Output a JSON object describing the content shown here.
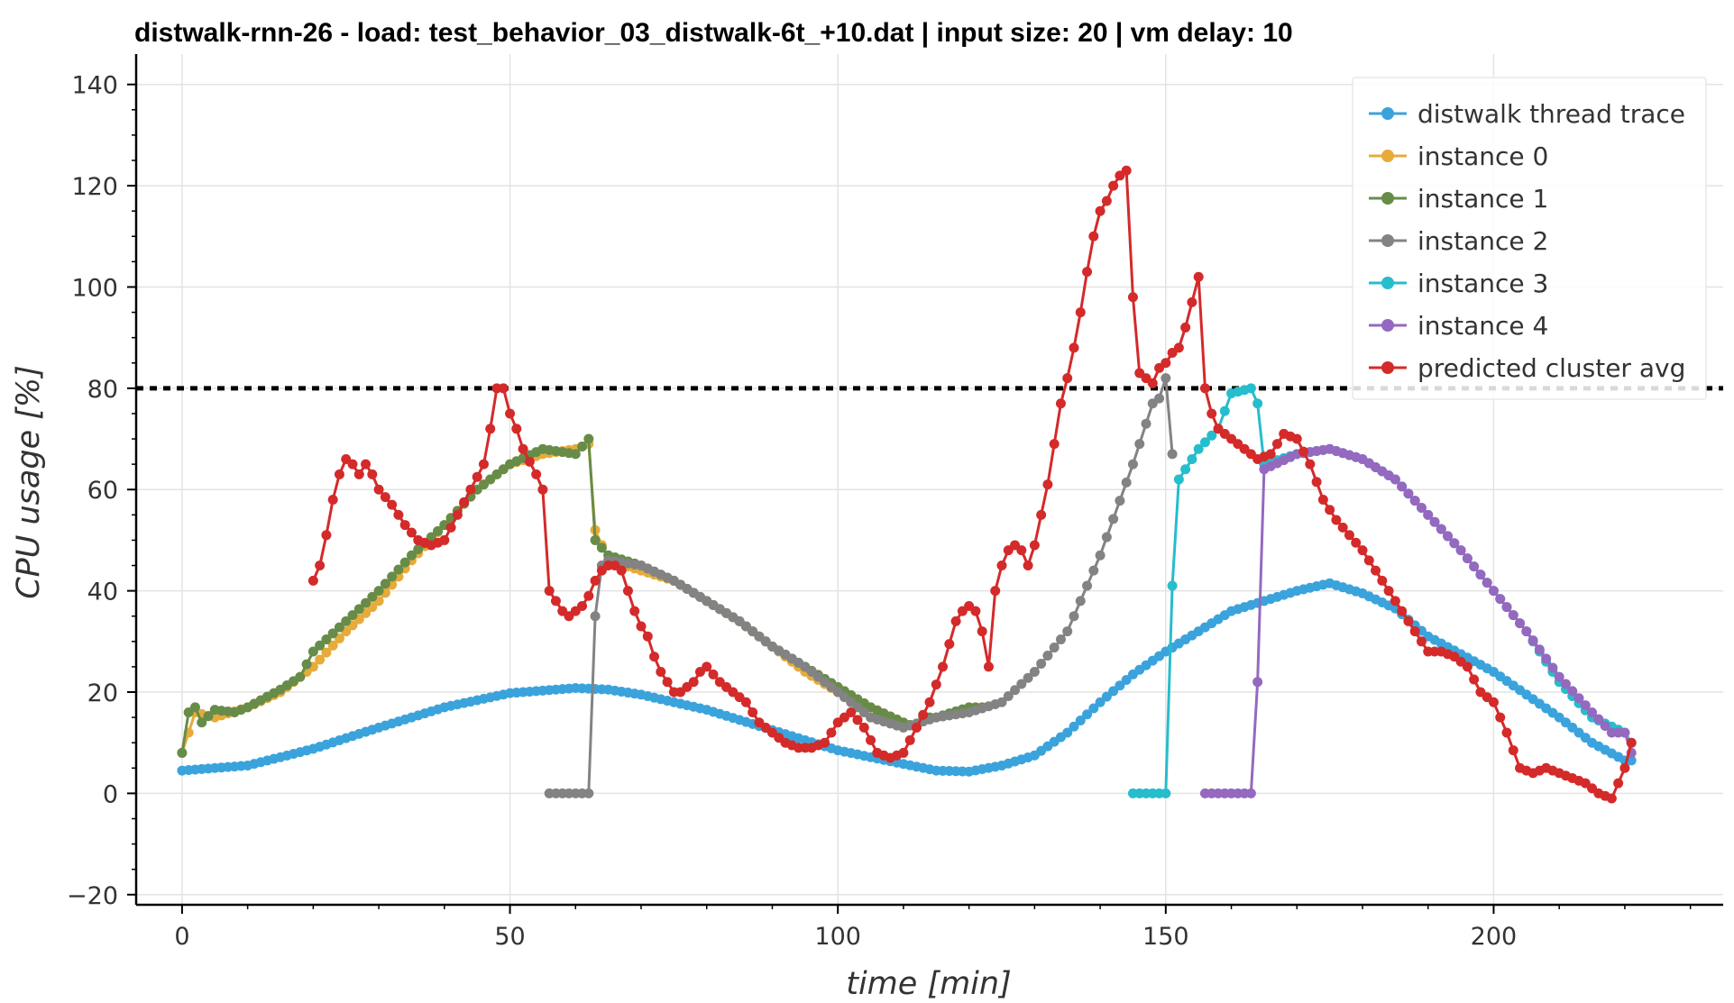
{
  "chart_data": {
    "type": "line",
    "title": "distwalk-rnn-26 - load: test_behavior_03_distwalk-6t_+10.dat | input size: 20 | vm delay: 10",
    "xlabel": "time [min]",
    "ylabel": "CPU usage [%]",
    "xlim": [
      -7,
      235
    ],
    "ylim": [
      -22,
      146
    ],
    "x_ticks": [
      0,
      50,
      100,
      150,
      200
    ],
    "y_ticks": [
      -20,
      0,
      20,
      40,
      60,
      80,
      100,
      120,
      140
    ],
    "x_tick_labels": [
      "0",
      "50",
      "100",
      "150",
      "200"
    ],
    "y_tick_labels": [
      "−20",
      "0",
      "20",
      "40",
      "60",
      "80",
      "100",
      "120",
      "140"
    ],
    "grid": true,
    "legend_position": "top-right",
    "threshold": {
      "y": 80,
      "style": "dotted",
      "color": "#000000"
    },
    "series": [
      {
        "name": "distwalk thread trace",
        "color": "#3ba3dc",
        "x": [
          0,
          10,
          20,
          30,
          40,
          50,
          60,
          65,
          70,
          80,
          90,
          100,
          110,
          115,
          120,
          125,
          130,
          135,
          140,
          145,
          150,
          160,
          170,
          175,
          180,
          185,
          190,
          200,
          210,
          215,
          220,
          221
        ],
        "y": [
          4.5,
          5.5,
          8.8,
          13,
          17,
          19.8,
          20.8,
          20.5,
          19.5,
          16.5,
          12.5,
          8.5,
          5.8,
          4.5,
          4.3,
          5.5,
          7.5,
          12,
          18,
          23.5,
          28,
          36,
          40,
          41.5,
          39.5,
          36.5,
          31,
          24,
          15,
          10,
          6.5,
          6.5
        ]
      },
      {
        "name": "instance 0",
        "color": "#e6ab3a",
        "x": [
          0,
          2,
          5,
          10,
          15,
          20,
          25,
          30,
          35,
          40,
          45,
          50,
          55,
          60,
          62,
          63,
          65,
          70,
          75,
          80,
          85,
          90,
          95,
          100,
          105,
          110,
          112
        ],
        "y": [
          8,
          16,
          15,
          17,
          20,
          25,
          32,
          38,
          46,
          53,
          60,
          65,
          67,
          68,
          69,
          52,
          46,
          44,
          42,
          38,
          34,
          29,
          24,
          20,
          17,
          14,
          13
        ]
      },
      {
        "name": "instance 1",
        "color": "#678c48",
        "x": [
          0,
          1,
          2,
          3,
          5,
          8,
          10,
          15,
          18,
          20,
          25,
          30,
          35,
          40,
          45,
          50,
          55,
          60,
          62,
          63,
          65,
          70,
          75,
          80,
          85,
          90,
          95,
          100,
          105,
          110,
          112,
          113,
          115,
          120,
          122
        ],
        "y": [
          8,
          16,
          17,
          14,
          16.5,
          16,
          17,
          20.5,
          23,
          28,
          34,
          40,
          47,
          53,
          60,
          65,
          68,
          67,
          70,
          50,
          47,
          45,
          42,
          38,
          34,
          29,
          25,
          21,
          17,
          14,
          13,
          15,
          15,
          17,
          17
        ]
      },
      {
        "name": "instance 2",
        "color": "#838383",
        "x": [
          56,
          57,
          58,
          59,
          60,
          61,
          62,
          63,
          64,
          65,
          70,
          75,
          80,
          85,
          90,
          95,
          100,
          105,
          110,
          115,
          120,
          125,
          130,
          135,
          140,
          145,
          148,
          149,
          150,
          151
        ],
        "y": [
          0,
          0,
          0,
          0,
          0,
          0,
          0,
          35,
          45,
          46,
          45,
          42,
          38,
          34,
          29,
          25,
          20,
          15,
          13,
          15,
          16,
          18,
          24,
          32,
          47,
          65,
          77,
          78,
          82,
          67
        ]
      },
      {
        "name": "instance 3",
        "color": "#26bdcc",
        "x": [
          145,
          146,
          147,
          148,
          149,
          150,
          151,
          152,
          155,
          158,
          160,
          163,
          164,
          165,
          170,
          175,
          180,
          185,
          190,
          195,
          200,
          205,
          210,
          215,
          220,
          221
        ],
        "y": [
          0,
          0,
          0,
          0,
          0,
          0,
          41,
          62,
          68,
          72,
          79,
          80,
          77,
          65,
          67,
          68,
          66,
          62,
          55,
          48,
          40,
          32,
          22,
          15,
          12,
          10
        ]
      },
      {
        "name": "instance 4",
        "color": "#9469bf",
        "x": [
          156,
          157,
          158,
          159,
          160,
          161,
          162,
          163,
          164,
          165,
          170,
          175,
          180,
          185,
          190,
          195,
          200,
          205,
          210,
          215,
          218,
          220,
          221
        ],
        "y": [
          0,
          0,
          0,
          0,
          0,
          0,
          0,
          0,
          22,
          64,
          67,
          68,
          66,
          62,
          55,
          48,
          40,
          32,
          23,
          16,
          12,
          12,
          8
        ]
      },
      {
        "name": "predicted cluster avg",
        "color": "#d42a2a",
        "x": [
          20,
          21,
          22,
          23,
          24,
          25,
          26,
          27,
          28,
          29,
          30,
          32,
          34,
          36,
          38,
          40,
          42,
          44,
          46,
          47,
          48,
          49,
          50,
          51,
          52,
          54,
          55,
          56,
          57,
          58,
          59,
          60,
          61,
          62,
          63,
          64,
          65,
          66,
          67,
          68,
          69,
          70,
          71,
          72,
          73,
          74,
          75,
          76,
          77,
          78,
          79,
          80,
          82,
          84,
          86,
          88,
          90,
          92,
          94,
          96,
          98,
          100,
          102,
          104,
          106,
          108,
          110,
          112,
          114,
          116,
          118,
          119,
          120,
          121,
          122,
          123,
          124,
          125,
          126,
          127,
          128,
          129,
          130,
          131,
          132,
          133,
          134,
          135,
          136,
          137,
          138,
          139,
          140,
          141,
          142,
          143,
          144,
          145,
          146,
          147,
          148,
          149,
          150,
          151,
          152,
          153,
          154,
          155,
          156,
          157,
          158,
          160,
          162,
          164,
          166,
          168,
          170,
          172,
          174,
          176,
          178,
          180,
          182,
          184,
          186,
          188,
          190,
          192,
          194,
          196,
          198,
          200,
          202,
          204,
          206,
          208,
          210,
          212,
          214,
          216,
          218,
          220,
          221
        ],
        "y": [
          42,
          45,
          51,
          58,
          63,
          66,
          65,
          63,
          65,
          63,
          60,
          57,
          53,
          50,
          49,
          50,
          55,
          60,
          65,
          72,
          80,
          80,
          75,
          72,
          68,
          63,
          60,
          40,
          38,
          36,
          35,
          36,
          37,
          39,
          42,
          44,
          45,
          45,
          44,
          40,
          36,
          33,
          31,
          27,
          24,
          22,
          20,
          20,
          21,
          22,
          24,
          25,
          22,
          20,
          18,
          14,
          12,
          10,
          9,
          9,
          10,
          14,
          16,
          13,
          8,
          7,
          8,
          13,
          18,
          25,
          34,
          36,
          37,
          36,
          32,
          25,
          40,
          45,
          48,
          49,
          48,
          45,
          49,
          55,
          61,
          69,
          77,
          82,
          88,
          95,
          103,
          110,
          115,
          117,
          120,
          122,
          123,
          98,
          83,
          82,
          81,
          84,
          85,
          87,
          88,
          92,
          97,
          102,
          80,
          75,
          72,
          70,
          68,
          66,
          67,
          71,
          70,
          65,
          58,
          54,
          51,
          48,
          44,
          40,
          36,
          32,
          28,
          28,
          27,
          25,
          20,
          18,
          12,
          5,
          4,
          5,
          4,
          3,
          2,
          0,
          -1,
          5,
          10
        ]
      }
    ]
  }
}
